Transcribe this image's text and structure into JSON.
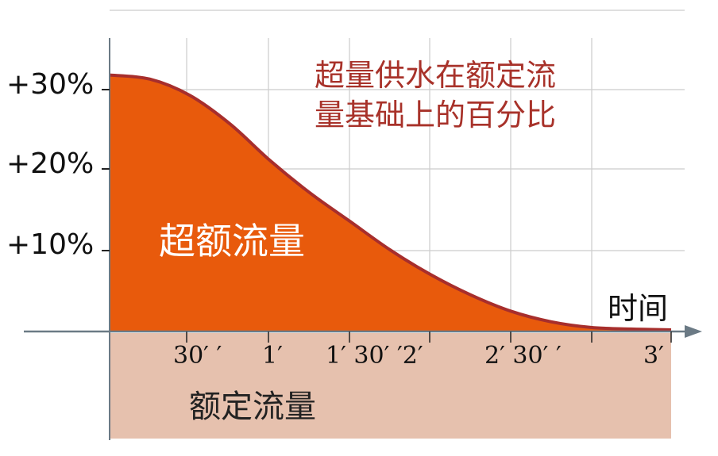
{
  "chart_data": {
    "type": "area",
    "x_tick_labels": [
      "30′ ′",
      "1′",
      "1′ 30′ ′2′",
      "2′ 30′ ′",
      "3′"
    ],
    "y_tick_labels": [
      "+30%",
      "+20%",
      "+10%"
    ],
    "xlabel": "时间",
    "ylim": [
      0,
      30
    ],
    "xlim": [
      0,
      3.5
    ],
    "grid": true,
    "annotation": [
      "超量供水在额定流",
      "量基础上的百分比"
    ],
    "area_labels": {
      "excess": "超额流量",
      "rated": "额定流量"
    },
    "series": [
      {
        "x": [
          0,
          0.25,
          0.5,
          0.75,
          1.0,
          1.25,
          1.5,
          1.75,
          2.0,
          2.25,
          2.5,
          2.75,
          3.0,
          3.25,
          3.5
        ],
        "y": [
          31.5,
          31.0,
          29.0,
          25.5,
          21.0,
          17.0,
          13.5,
          10.0,
          7.0,
          4.5,
          2.5,
          1.2,
          0.5,
          0.3,
          0.2
        ]
      }
    ],
    "colors": {
      "excess_fill": "#e85a0c",
      "curve_stroke": "#a72e2c",
      "rated_fill": "#e6c1ae",
      "grid": "#cccccc",
      "axis": "#6b7a85",
      "note_text": "#a8322a"
    }
  }
}
